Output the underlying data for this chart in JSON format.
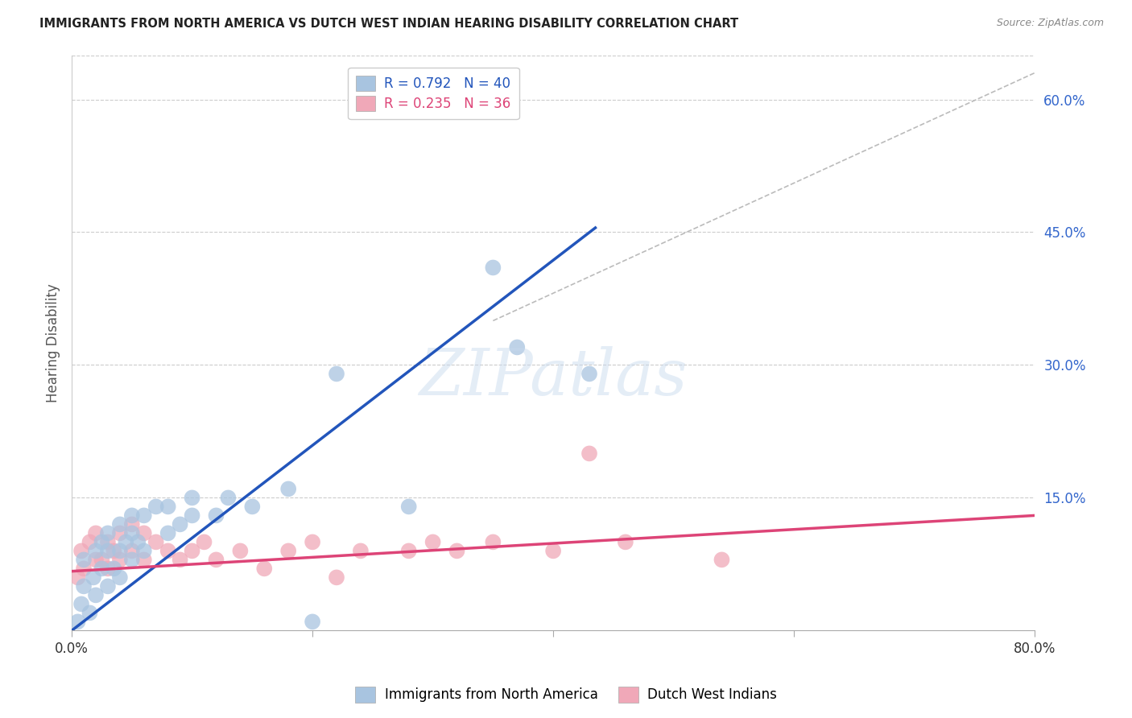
{
  "title": "IMMIGRANTS FROM NORTH AMERICA VS DUTCH WEST INDIAN HEARING DISABILITY CORRELATION CHART",
  "source": "Source: ZipAtlas.com",
  "ylabel": "Hearing Disability",
  "watermark": "ZIPatlas",
  "xlim": [
    0,
    0.8
  ],
  "ylim": [
    0,
    0.65
  ],
  "ytick_positions": [
    0.15,
    0.3,
    0.45,
    0.6
  ],
  "ytick_labels": [
    "15.0%",
    "30.0%",
    "45.0%",
    "60.0%"
  ],
  "blue_R": 0.792,
  "blue_N": 40,
  "pink_R": 0.235,
  "pink_N": 36,
  "blue_color": "#a8c4e0",
  "pink_color": "#f0a8b8",
  "blue_line_color": "#2255bb",
  "pink_line_color": "#dd4477",
  "legend_label_blue": "Immigrants from North America",
  "legend_label_pink": "Dutch West Indians",
  "blue_scatter_x": [
    0.005,
    0.008,
    0.01,
    0.01,
    0.015,
    0.018,
    0.02,
    0.02,
    0.025,
    0.025,
    0.03,
    0.03,
    0.03,
    0.035,
    0.04,
    0.04,
    0.04,
    0.045,
    0.05,
    0.05,
    0.05,
    0.055,
    0.06,
    0.06,
    0.07,
    0.08,
    0.08,
    0.09,
    0.1,
    0.1,
    0.12,
    0.13,
    0.15,
    0.18,
    0.2,
    0.22,
    0.28,
    0.35,
    0.37,
    0.43
  ],
  "blue_scatter_y": [
    0.01,
    0.03,
    0.05,
    0.08,
    0.02,
    0.06,
    0.04,
    0.09,
    0.07,
    0.1,
    0.05,
    0.09,
    0.11,
    0.07,
    0.06,
    0.09,
    0.12,
    0.1,
    0.08,
    0.11,
    0.13,
    0.1,
    0.09,
    0.13,
    0.14,
    0.11,
    0.14,
    0.12,
    0.13,
    0.15,
    0.13,
    0.15,
    0.14,
    0.16,
    0.01,
    0.29,
    0.14,
    0.41,
    0.32,
    0.29
  ],
  "pink_scatter_x": [
    0.005,
    0.008,
    0.01,
    0.015,
    0.02,
    0.02,
    0.025,
    0.03,
    0.03,
    0.035,
    0.04,
    0.04,
    0.05,
    0.05,
    0.06,
    0.06,
    0.07,
    0.08,
    0.09,
    0.1,
    0.11,
    0.12,
    0.14,
    0.16,
    0.18,
    0.2,
    0.22,
    0.24,
    0.28,
    0.3,
    0.32,
    0.35,
    0.4,
    0.43,
    0.46,
    0.54
  ],
  "pink_scatter_y": [
    0.06,
    0.09,
    0.07,
    0.1,
    0.08,
    0.11,
    0.08,
    0.07,
    0.1,
    0.09,
    0.08,
    0.11,
    0.09,
    0.12,
    0.08,
    0.11,
    0.1,
    0.09,
    0.08,
    0.09,
    0.1,
    0.08,
    0.09,
    0.07,
    0.09,
    0.1,
    0.06,
    0.09,
    0.09,
    0.1,
    0.09,
    0.1,
    0.09,
    0.2,
    0.1,
    0.08
  ],
  "blue_line_x": [
    0.0,
    0.435
  ],
  "blue_line_y": [
    0.0,
    0.455
  ],
  "pink_line_x": [
    0.0,
    0.8
  ],
  "pink_line_y": [
    0.067,
    0.13
  ],
  "diag_line_x": [
    0.35,
    0.8
  ],
  "diag_line_y": [
    0.35,
    0.63
  ]
}
